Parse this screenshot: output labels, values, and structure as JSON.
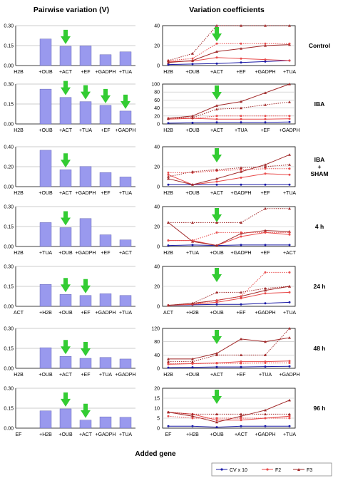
{
  "header": {
    "left_title": "Pairwise variation (V)",
    "right_title": "Variation coefficients"
  },
  "footer": {
    "xlabel": "Added gene"
  },
  "legend": {
    "entries": [
      "CV x 10",
      "F2",
      "F3"
    ]
  },
  "colors": {
    "bar_fill": "#9999ee",
    "bar_stroke": "#5555aa",
    "arrow": "#33cc33",
    "cv": "#1a1aa6",
    "f2": "#e84b4b",
    "f3": "#a02828",
    "grid": "#c0c0c0"
  },
  "chart_data": [
    {
      "type": "bar",
      "condition": "Control",
      "start_label": "H2B",
      "categories": [
        "+OUB",
        "+ACT",
        "+EF",
        "+GADPH",
        "+TUA"
      ],
      "values": [
        0.2,
        0.145,
        0.148,
        0.082,
        0.103
      ],
      "ylim": [
        0,
        0.3
      ],
      "yticks": [
        "0.00",
        "0.15",
        "0.30"
      ],
      "arrows": [
        "+ACT"
      ]
    },
    {
      "type": "line",
      "condition": "Control",
      "ylim": [
        0,
        40
      ],
      "yticks": [
        "0",
        "20",
        "40"
      ],
      "categories": [
        "H2B",
        "+OUB",
        "+ACT",
        "+EF",
        "+GADPH",
        "+TUA"
      ],
      "series": [
        {
          "name": "CV x 10",
          "style": "solid",
          "values": [
            1,
            1.5,
            2,
            3,
            4,
            5
          ]
        },
        {
          "name": "F2",
          "style": "solid",
          "values": [
            4,
            4.5,
            8,
            7,
            6,
            5
          ]
        },
        {
          "name": "F3",
          "style": "solid",
          "values": [
            3,
            5,
            14,
            17,
            20,
            21
          ]
        },
        {
          "name": "F2",
          "style": "dotted",
          "values": [
            5,
            7,
            22,
            22,
            22,
            22
          ]
        },
        {
          "name": "F3",
          "style": "dotted",
          "values": [
            5,
            12,
            41,
            41,
            41,
            41
          ]
        }
      ],
      "arrow": "+ACT"
    },
    {
      "type": "bar",
      "condition": "IBA",
      "start_label": "H2B",
      "categories": [
        "+OUB",
        "+ACT",
        "+TUA",
        "+EF",
        "+GADPH"
      ],
      "values": [
        0.262,
        0.2,
        0.168,
        0.14,
        0.097
      ],
      "ylim": [
        0,
        0.3
      ],
      "yticks": [
        "0.00",
        "0.15",
        "0.30"
      ],
      "arrows": [
        "+ACT",
        "+TUA",
        "+EF",
        "+GADPH"
      ]
    },
    {
      "type": "line",
      "condition": "IBA",
      "ylim": [
        0,
        100
      ],
      "yticks": [
        "0",
        "20",
        "40",
        "60",
        "80",
        "100"
      ],
      "categories": [
        "H2B",
        "+OUB",
        "+ACT",
        "+TUA",
        "+EF",
        "+GADPH"
      ],
      "series": [
        {
          "name": "CV x 10",
          "style": "solid",
          "values": [
            2,
            3,
            4,
            4,
            4,
            5
          ]
        },
        {
          "name": "F2",
          "style": "solid",
          "values": [
            12,
            14,
            12,
            12,
            12,
            13
          ]
        },
        {
          "name": "F3",
          "style": "solid",
          "values": [
            14,
            20,
            46,
            56,
            78,
            100
          ]
        },
        {
          "name": "F2",
          "style": "dotted",
          "values": [
            14,
            14,
            20,
            20,
            20,
            20
          ]
        },
        {
          "name": "F3",
          "style": "dotted",
          "values": [
            14,
            16,
            37,
            40,
            48,
            55
          ]
        }
      ],
      "arrow": "+ACT"
    },
    {
      "type": "bar",
      "condition": "IBA + SHAM",
      "condition_lines": [
        "IBA",
        "+",
        "SHAM"
      ],
      "start_label": "H2B",
      "categories": [
        "+OUB",
        "+ACT",
        "+GADPH",
        "+EF",
        "+TUA"
      ],
      "values": [
        0.365,
        0.17,
        0.202,
        0.142,
        0.097
      ],
      "ylim": [
        0,
        0.4
      ],
      "yticks": [
        "0.00",
        "0.20",
        "0.40"
      ],
      "arrows": [
        "+ACT"
      ]
    },
    {
      "type": "line",
      "condition": "IBA + SHAM",
      "ylim": [
        0,
        40
      ],
      "yticks": [
        "0",
        "20",
        "40"
      ],
      "categories": [
        "H2B",
        "+OUB",
        "+ACT",
        "+GADPH",
        "+EF",
        "+TUA"
      ],
      "series": [
        {
          "name": "CV x 10",
          "style": "solid",
          "values": [
            2,
            2,
            2,
            2,
            2,
            2
          ]
        },
        {
          "name": "F2",
          "style": "solid",
          "values": [
            12,
            2,
            5,
            9,
            13,
            12
          ]
        },
        {
          "name": "F3",
          "style": "solid",
          "values": [
            8,
            2,
            8,
            15,
            22,
            32
          ]
        },
        {
          "name": "F2",
          "style": "dotted",
          "values": [
            14,
            14,
            16,
            17,
            18,
            18
          ]
        },
        {
          "name": "F3",
          "style": "dotted",
          "values": [
            10,
            15,
            17,
            19,
            20,
            22
          ]
        }
      ],
      "arrow": "+ACT"
    },
    {
      "type": "bar",
      "condition": "4 h",
      "start_label": "H2B",
      "categories": [
        "+TUA",
        "+OUB",
        "+GADPH",
        "+EF",
        "+ACT"
      ],
      "values": [
        0.18,
        0.142,
        0.21,
        0.088,
        0.05
      ],
      "ylim": [
        0,
        0.3
      ],
      "yticks": [
        "0.00",
        "0.15",
        "0.30"
      ],
      "arrows": [
        "+OUB"
      ]
    },
    {
      "type": "line",
      "condition": "4 h",
      "ylim": [
        0,
        40
      ],
      "yticks": [
        "0",
        "20",
        "40"
      ],
      "categories": [
        "H2B",
        "+TUA",
        "+OUB",
        "+GADPH",
        "+EF",
        "+ACT"
      ],
      "series": [
        {
          "name": "CV x 10",
          "style": "solid",
          "values": [
            1,
            1.5,
            1,
            1.5,
            1.5,
            1.5
          ]
        },
        {
          "name": "F2",
          "style": "solid",
          "values": [
            6,
            6,
            1,
            10,
            14,
            12
          ]
        },
        {
          "name": "F3",
          "style": "solid",
          "values": [
            24,
            5,
            1,
            13,
            16,
            15
          ]
        },
        {
          "name": "F2",
          "style": "dotted",
          "values": [
            6,
            6,
            14,
            14,
            14,
            14
          ]
        },
        {
          "name": "F3",
          "style": "dotted",
          "values": [
            24,
            24,
            24,
            24,
            38,
            38
          ]
        }
      ],
      "arrow": "+OUB"
    },
    {
      "type": "bar",
      "condition": "24 h",
      "start_label": "ACT",
      "categories": [
        "+H2B",
        "+OUB",
        "+EF",
        "+GADPH",
        "+TUA"
      ],
      "values": [
        0.165,
        0.09,
        0.082,
        0.095,
        0.082
      ],
      "ylim": [
        0,
        0.3
      ],
      "yticks": [
        "0.00",
        "0.15",
        "0.30"
      ],
      "arrows": [
        "+OUB",
        "+EF"
      ]
    },
    {
      "type": "line",
      "condition": "24 h",
      "ylim": [
        0,
        40
      ],
      "yticks": [
        "0",
        "20",
        "40"
      ],
      "categories": [
        "ACT",
        "+H2B",
        "+OUB",
        "+EF",
        "+GADPH",
        "+TUA"
      ],
      "series": [
        {
          "name": "CV x 10",
          "style": "solid",
          "values": [
            1,
            1.5,
            2,
            2,
            3,
            4
          ]
        },
        {
          "name": "F2",
          "style": "solid",
          "values": [
            1,
            2,
            4,
            8,
            13,
            14
          ]
        },
        {
          "name": "F3",
          "style": "solid",
          "values": [
            1,
            3,
            6,
            10,
            16,
            20
          ]
        },
        {
          "name": "F2",
          "style": "dotted",
          "values": [
            1,
            2,
            6,
            10,
            34,
            34
          ]
        },
        {
          "name": "F3",
          "style": "dotted",
          "values": [
            1,
            3,
            14,
            14,
            18,
            20
          ]
        }
      ],
      "arrow": "+OUB"
    },
    {
      "type": "bar",
      "condition": "48 h",
      "start_label": "H2B",
      "categories": [
        "+OUB",
        "+ACT",
        "+EF",
        "+TUA",
        "+GADPH"
      ],
      "values": [
        0.155,
        0.09,
        0.075,
        0.082,
        0.07
      ],
      "ylim": [
        0,
        0.3
      ],
      "yticks": [
        "0.00",
        "0.15",
        "0.30"
      ],
      "arrows": [
        "+ACT",
        "+EF"
      ]
    },
    {
      "type": "line",
      "condition": "48 h",
      "ylim": [
        0,
        120
      ],
      "yticks": [
        "0",
        "40",
        "80",
        "120"
      ],
      "categories": [
        "H2B",
        "+OUB",
        "+ACT",
        "+EF",
        "+TUA",
        "+GADPH"
      ],
      "series": [
        {
          "name": "CV x 10",
          "style": "solid",
          "values": [
            2,
            3,
            4,
            4,
            5,
            6
          ]
        },
        {
          "name": "F2",
          "style": "solid",
          "values": [
            12,
            14,
            16,
            20,
            20,
            22
          ]
        },
        {
          "name": "F3",
          "style": "solid",
          "values": [
            28,
            28,
            45,
            88,
            80,
            92
          ]
        },
        {
          "name": "F2",
          "style": "dotted",
          "values": [
            14,
            14,
            15,
            15,
            16,
            16
          ]
        },
        {
          "name": "F3",
          "style": "dotted",
          "values": [
            20,
            20,
            40,
            40,
            40,
            125
          ]
        }
      ],
      "arrow": "+ACT"
    },
    {
      "type": "bar",
      "condition": "96 h",
      "start_label": "EF",
      "categories": [
        "+H2B",
        "+OUB",
        "+ACT",
        "+GADPH",
        "+TUA"
      ],
      "values": [
        0.13,
        0.145,
        0.06,
        0.085,
        0.082
      ],
      "ylim": [
        0,
        0.3
      ],
      "yticks": [
        "0.00",
        "0.15",
        "0.30"
      ],
      "arrows": [
        "+OUB",
        "+ACT"
      ]
    },
    {
      "type": "line",
      "condition": "96 h",
      "ylim": [
        0,
        20
      ],
      "yticks": [
        "0",
        "5",
        "10",
        "15",
        "20"
      ],
      "categories": [
        "EF",
        "+H2B",
        "+OUB",
        "+ACT",
        "+GADPH",
        "+TUA"
      ],
      "series": [
        {
          "name": "CV x 10",
          "style": "solid",
          "values": [
            1,
            1,
            0.5,
            1,
            1,
            1
          ]
        },
        {
          "name": "F2",
          "style": "solid",
          "values": [
            8,
            7,
            4,
            4,
            5,
            6
          ]
        },
        {
          "name": "F3",
          "style": "solid",
          "values": [
            8,
            6,
            3,
            6,
            9,
            14
          ]
        },
        {
          "name": "F2",
          "style": "dotted",
          "values": [
            6,
            5,
            5,
            5,
            5,
            5
          ]
        },
        {
          "name": "F3",
          "style": "dotted",
          "values": [
            8,
            7,
            7,
            7,
            7,
            7
          ]
        }
      ],
      "arrow": "+OUB"
    }
  ]
}
